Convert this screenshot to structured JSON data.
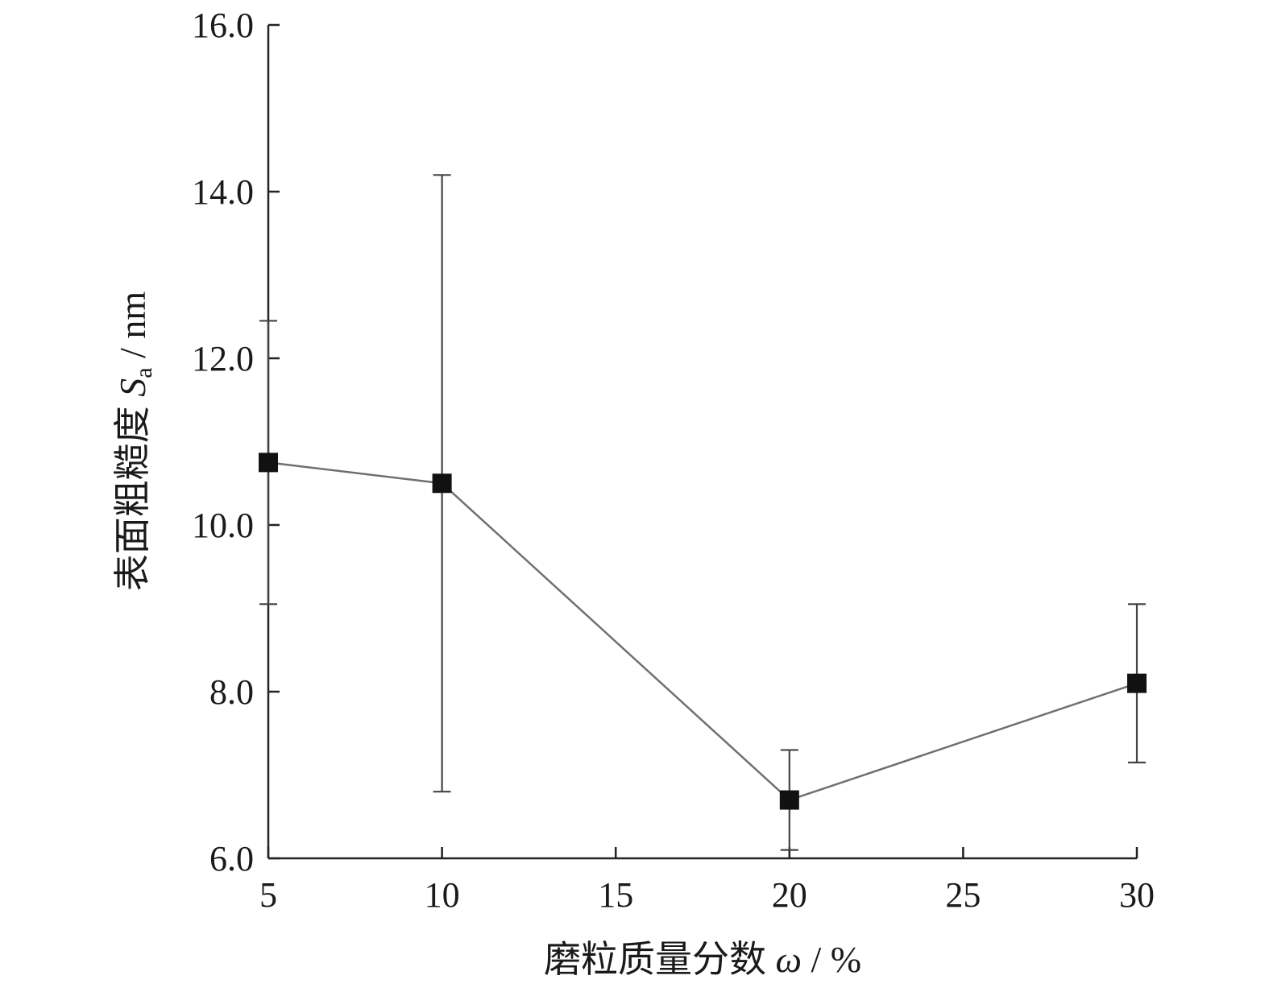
{
  "chart_data": {
    "type": "line",
    "title": "",
    "xlabel_text": "磨粒质量分数",
    "xlabel_symbol": "ω",
    "xlabel_unit": " / %",
    "ylabel_text": "表面粗糙度",
    "ylabel_symbol": "S",
    "ylabel_subscript": "a",
    "ylabel_unit": " / nm",
    "xlim": [
      5,
      30
    ],
    "ylim": [
      6.0,
      16.0
    ],
    "x_ticks": [
      5,
      10,
      15,
      20,
      25,
      30
    ],
    "x_tick_labels": [
      "5",
      "10",
      "15",
      "20",
      "25",
      "30"
    ],
    "y_ticks": [
      6.0,
      8.0,
      10.0,
      12.0,
      14.0,
      16.0
    ],
    "y_tick_labels": [
      "6.0",
      "8.0",
      "10.0",
      "12.0",
      "14.0",
      "16.0"
    ],
    "grid": false,
    "series": [
      {
        "x": [
          5,
          10,
          20,
          30
        ],
        "y": [
          10.75,
          10.5,
          6.7,
          8.1
        ],
        "err_low": [
          9.05,
          6.8,
          6.1,
          7.15
        ],
        "err_high": [
          12.45,
          14.2,
          7.3,
          9.05
        ],
        "marker": "square",
        "line_color": "#707070",
        "marker_color": "#111111"
      }
    ]
  }
}
